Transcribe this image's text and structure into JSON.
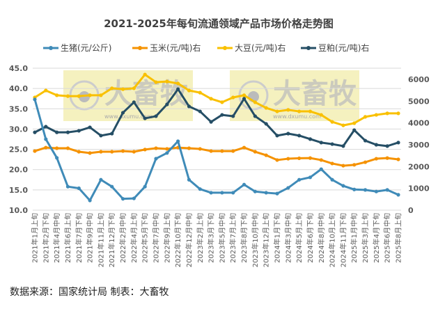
{
  "chart_data": {
    "type": "line",
    "title": "2021-2025年每旬流通领域产品市场价格走势图",
    "legend_position": "top",
    "grid": true,
    "categories": [
      "2021年1月上旬",
      "2021年2月下旬",
      "2021年4月中旬",
      "2021年6月上旬",
      "2021年7月下旬",
      "2021年9月中旬",
      "2021年11月上旬",
      "2021年12月下旬",
      "2022年2月中旬",
      "2022年4月上旬",
      "2022年5月下旬",
      "2022年7月中旬",
      "2022年9月上旬",
      "2022年10月下旬",
      "2022年12月中旬",
      "2023年2月上旬",
      "2023年3月下旬",
      "2023年5月中旬",
      "2023年7月上旬",
      "2023年8月下旬",
      "2023年10月中旬",
      "2023年12月上旬",
      "2024年1月下旬",
      "2024年3月中旬",
      "2024年5月上旬",
      "2024年6月下旬",
      "2024年8月中旬",
      "2024年10月上旬",
      "2024年11月下旬",
      "2025年1月中旬",
      "2025年3月上旬",
      "2025年4月下旬",
      "2025年6月中旬",
      "2025年8月上旬"
    ],
    "left_axis": {
      "ylim": [
        10,
        45
      ],
      "ticks": [
        "10.0",
        "15.0",
        "20.0",
        "25.0",
        "30.0",
        "35.0",
        "40.0",
        "45.0"
      ]
    },
    "right_axis": {
      "ylim": [
        0,
        6000
      ],
      "ticks": [
        "0",
        "1000",
        "2000",
        "3000",
        "4000",
        "5000",
        "6000"
      ]
    },
    "series": [
      {
        "name": "生猪(元/公斤)",
        "axis": "left",
        "color": "#3f8bb8",
        "values": [
          37.3,
          27.5,
          22.9,
          15.8,
          15.4,
          12.4,
          17.5,
          15.8,
          12.8,
          12.9,
          15.8,
          22.7,
          24.1,
          27.0,
          17.5,
          15.2,
          14.3,
          14.3,
          14.3,
          16.3,
          14.6,
          14.3,
          14.1,
          15.5,
          17.5,
          18.1,
          20.1,
          17.5,
          16.0,
          15.1,
          15.0,
          14.6,
          15.0,
          13.8
        ]
      },
      {
        "name": "玉米(元/吨)右",
        "axis": "right",
        "color": "#f59200",
        "values": [
          2710,
          2870,
          2840,
          2840,
          2680,
          2620,
          2680,
          2680,
          2710,
          2680,
          2780,
          2840,
          2810,
          2870,
          2840,
          2810,
          2710,
          2710,
          2710,
          2870,
          2680,
          2520,
          2300,
          2360,
          2380,
          2390,
          2300,
          2140,
          2040,
          2080,
          2200,
          2360,
          2390,
          2330
        ]
      },
      {
        "name": "大豆(元/吨)右",
        "axis": "right",
        "color": "#f9c000",
        "values": [
          5170,
          5490,
          5270,
          5230,
          5230,
          5270,
          5270,
          5590,
          5550,
          5590,
          6220,
          5870,
          5900,
          5810,
          5490,
          5390,
          5110,
          4950,
          5170,
          5270,
          4950,
          4690,
          4530,
          4600,
          4530,
          4530,
          4370,
          4050,
          3890,
          3990,
          4280,
          4370,
          4440,
          4440
        ]
      },
      {
        "name": "豆粕(元/吨)右",
        "axis": "right",
        "color": "#254e65",
        "values": [
          3570,
          3830,
          3570,
          3570,
          3640,
          3800,
          3420,
          3510,
          4470,
          4950,
          4210,
          4310,
          4850,
          5550,
          4760,
          4530,
          4050,
          4370,
          4310,
          5110,
          4310,
          3960,
          3420,
          3510,
          3420,
          3260,
          3100,
          3030,
          2940,
          3670,
          3190,
          3000,
          2940,
          3100
        ]
      }
    ]
  },
  "watermark": {
    "brand": "大畜牧",
    "url": "www.dxumu.com"
  },
  "footer": "数据来源：国家统计局  制表：大畜牧"
}
